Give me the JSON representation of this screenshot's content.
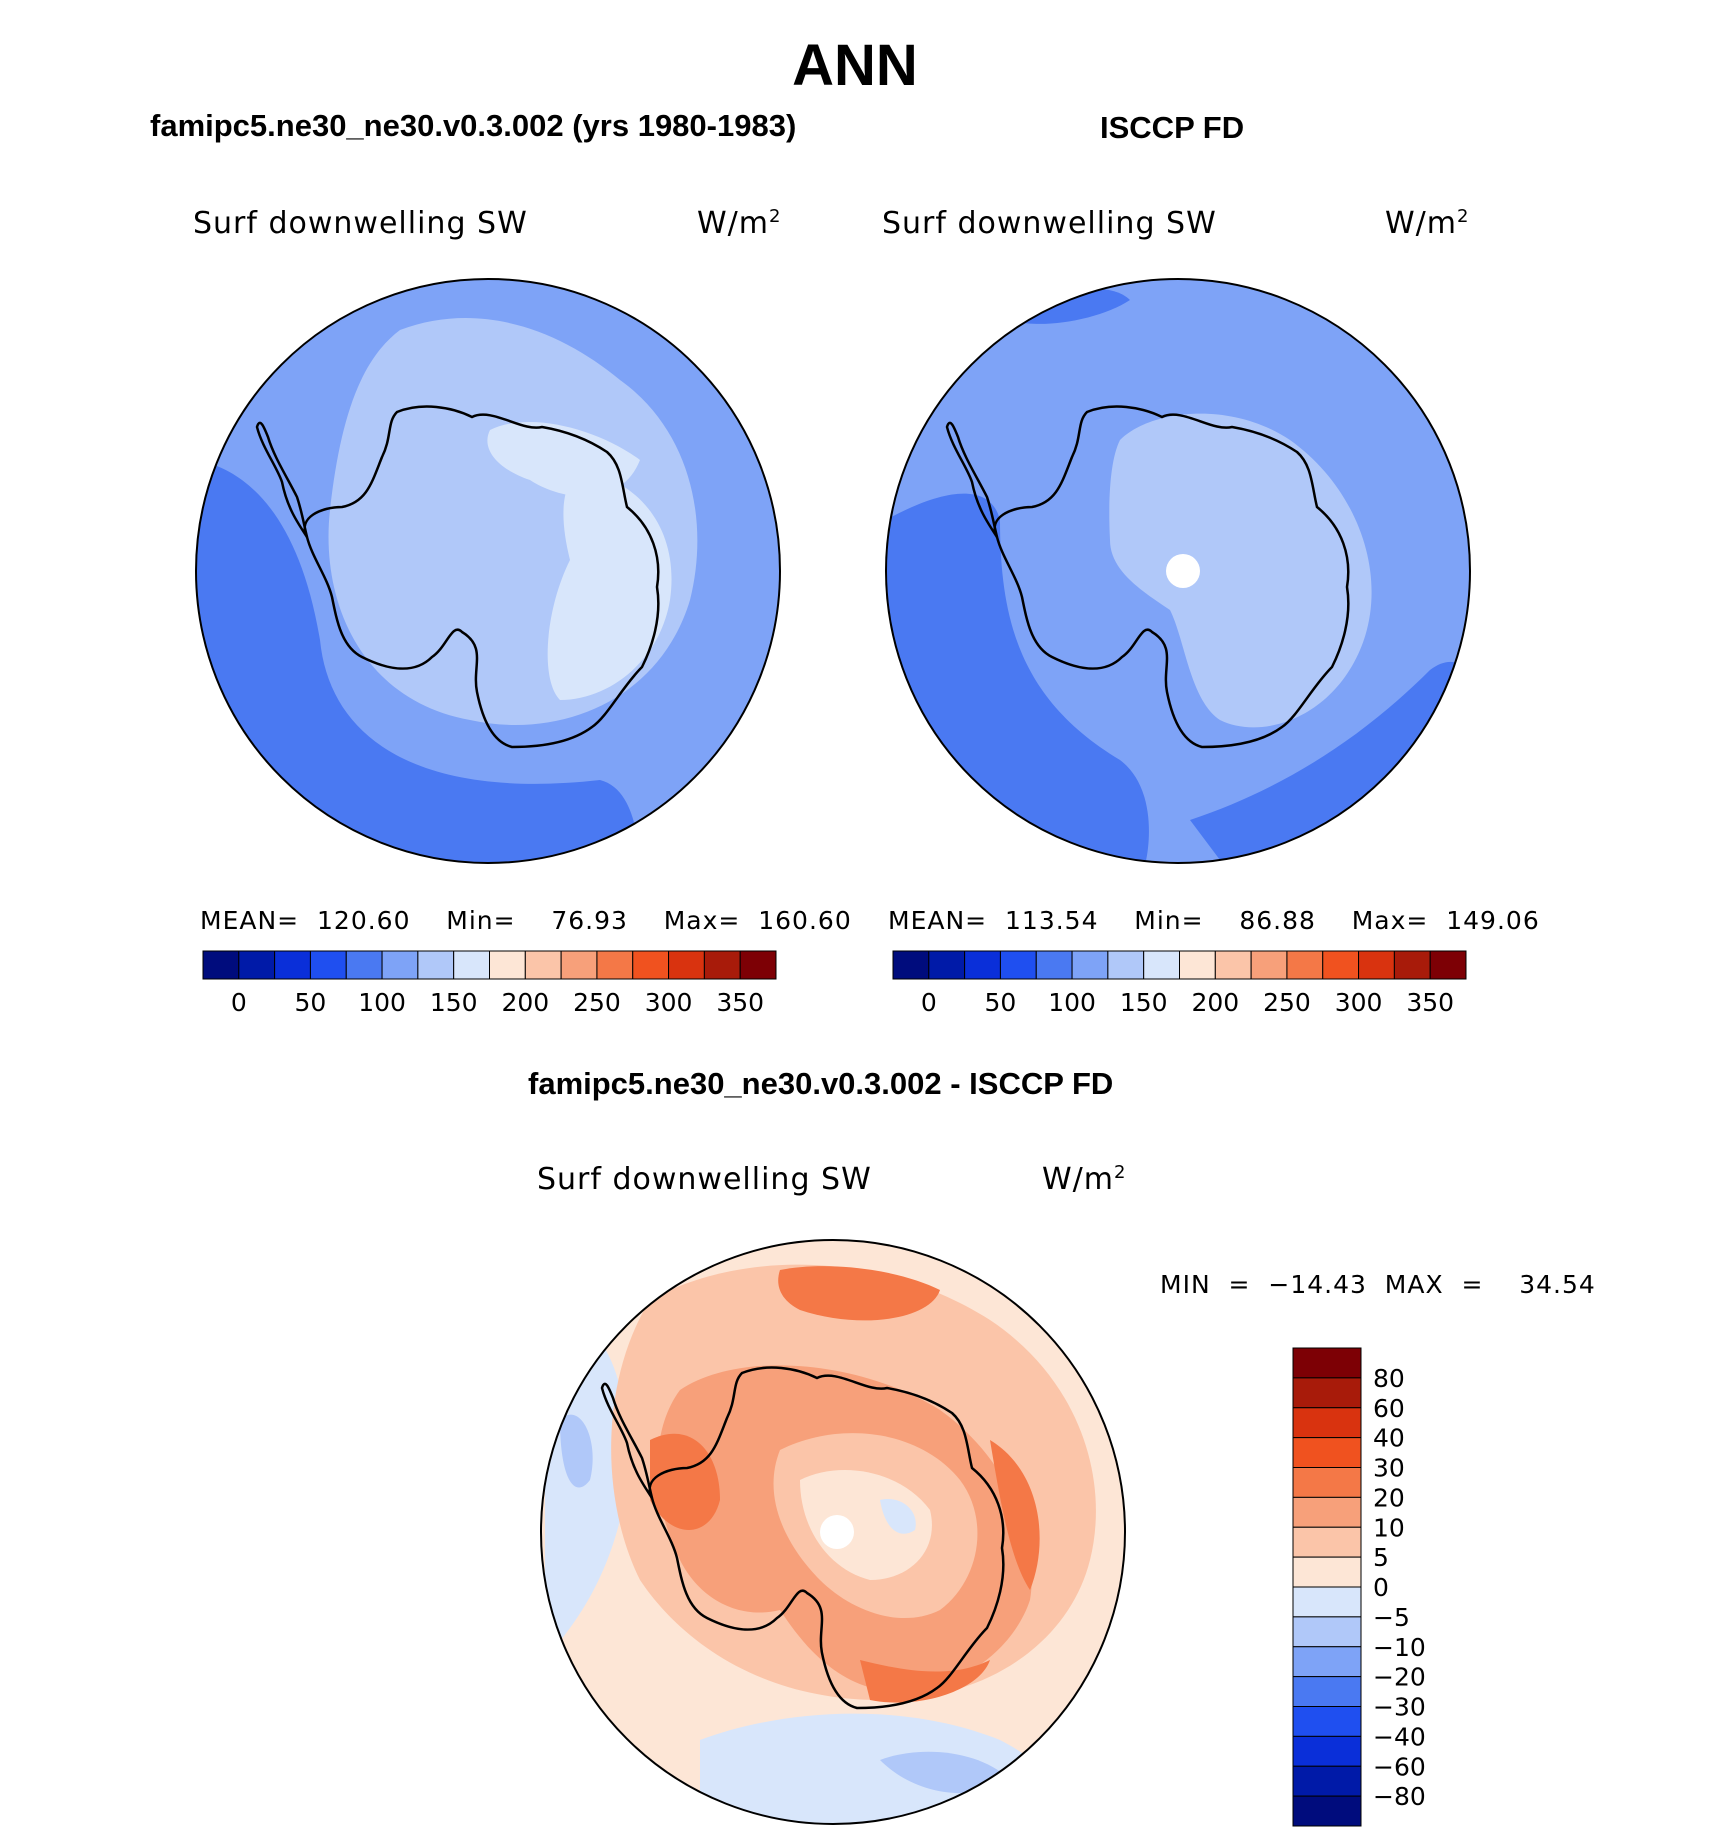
{
  "figure": {
    "season": "ANN",
    "left_title": "famipc5.ne30_ne30.v0.3.002 (yrs 1980-1983)",
    "right_title": "ISCCP FD",
    "diff_title": "famipc5.ne30_ne30.v0.3.002 - ISCCP FD"
  },
  "panels": {
    "model": {
      "variable": "Surf downwelling SW",
      "units": "W/m",
      "units_sup": "2",
      "stats": "MEAN=  120.60    Min=    76.93    Max=  160.60"
    },
    "obs": {
      "variable": "Surf downwelling SW",
      "units": "W/m",
      "units_sup": "2",
      "stats": "MEAN=  113.54    Min=    86.88    Max=  149.06"
    },
    "diff": {
      "variable": "Surf downwelling SW",
      "units": "W/m",
      "units_sup": "2",
      "stats": "MIN  =  −14.43  MAX  =    34.54"
    }
  },
  "colorbar_abs": {
    "labels": [
      "0",
      "50",
      "100",
      "150",
      "200",
      "250",
      "300",
      "350"
    ],
    "colors": [
      "#000c7d",
      "#001aa8",
      "#0a2fd9",
      "#1f4ff0",
      "#4a79f2",
      "#7ea3f7",
      "#b0c8f9",
      "#d8e6fb",
      "#fde6d6",
      "#fbc5a9",
      "#f7a07a",
      "#f47847",
      "#f0521f",
      "#d9330f",
      "#a81b0a",
      "#7d0005"
    ]
  },
  "colorbar_diff": {
    "labels": [
      "80",
      "60",
      "40",
      "30",
      "20",
      "10",
      "5",
      "0",
      "−5",
      "−10",
      "−20",
      "−30",
      "−40",
      "−60",
      "−80"
    ],
    "colors": [
      "#7d0005",
      "#a81b0a",
      "#d9330f",
      "#f0521f",
      "#f47847",
      "#f7a07a",
      "#fbc5a9",
      "#fde6d6",
      "#d8e6fb",
      "#b0c8f9",
      "#7ea3f7",
      "#4a79f2",
      "#1f4ff0",
      "#0a2fd9",
      "#001aa8",
      "#000c7d"
    ]
  }
}
